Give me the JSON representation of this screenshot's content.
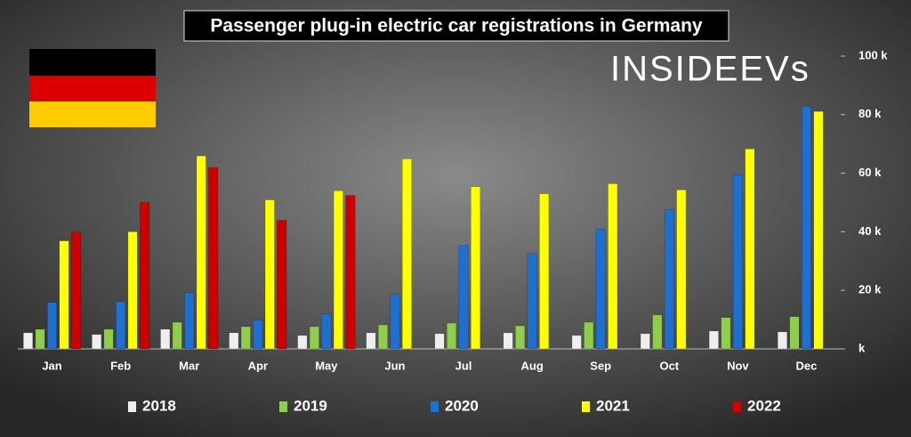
{
  "chart_data": {
    "type": "bar",
    "title": "Passenger plug-in electric car registrations in Germany",
    "logo": "INSIDEEVs",
    "categories": [
      "Jan",
      "Feb",
      "Mar",
      "Apr",
      "May",
      "Jun",
      "Jul",
      "Aug",
      "Sep",
      "Oct",
      "Nov",
      "Dec"
    ],
    "series": [
      {
        "name": "2018",
        "color": "#eeeeee",
        "values": [
          5.5,
          4.9,
          6.7,
          5.5,
          4.6,
          5.5,
          5.2,
          5.5,
          4.6,
          5.2,
          6.1,
          5.8
        ]
      },
      {
        "name": "2019",
        "color": "#8fce4c",
        "values": [
          6.7,
          6.7,
          9.1,
          7.6,
          7.6,
          8.2,
          8.8,
          7.9,
          9.1,
          11.6,
          10.7,
          11.0
        ]
      },
      {
        "name": "2020",
        "color": "#1f6fcf",
        "values": [
          15.9,
          16.2,
          19.2,
          9.8,
          11.9,
          18.6,
          35.3,
          32.6,
          40.9,
          47.6,
          59.5,
          82.9
        ]
      },
      {
        "name": "2021",
        "color": "#ffff00",
        "values": [
          36.9,
          40.0,
          65.9,
          50.9,
          54.0,
          64.9,
          55.4,
          53.0,
          56.4,
          54.3,
          68.3,
          81.1
        ]
      },
      {
        "name": "2022",
        "color": "#cc0000",
        "values": [
          39.9,
          50.0,
          61.9,
          43.9,
          52.4,
          null,
          null,
          null,
          null,
          null,
          null,
          null
        ]
      }
    ],
    "ylim": [
      0,
      100
    ],
    "yticks": [
      {
        "value": 0,
        "label": "k"
      },
      {
        "value": 20,
        "label": "20 k"
      },
      {
        "value": 40,
        "label": "40 k"
      },
      {
        "value": 60,
        "label": "60 k"
      },
      {
        "value": 80,
        "label": "80 k"
      },
      {
        "value": 100,
        "label": "100 k"
      }
    ],
    "legend": "bottom"
  }
}
